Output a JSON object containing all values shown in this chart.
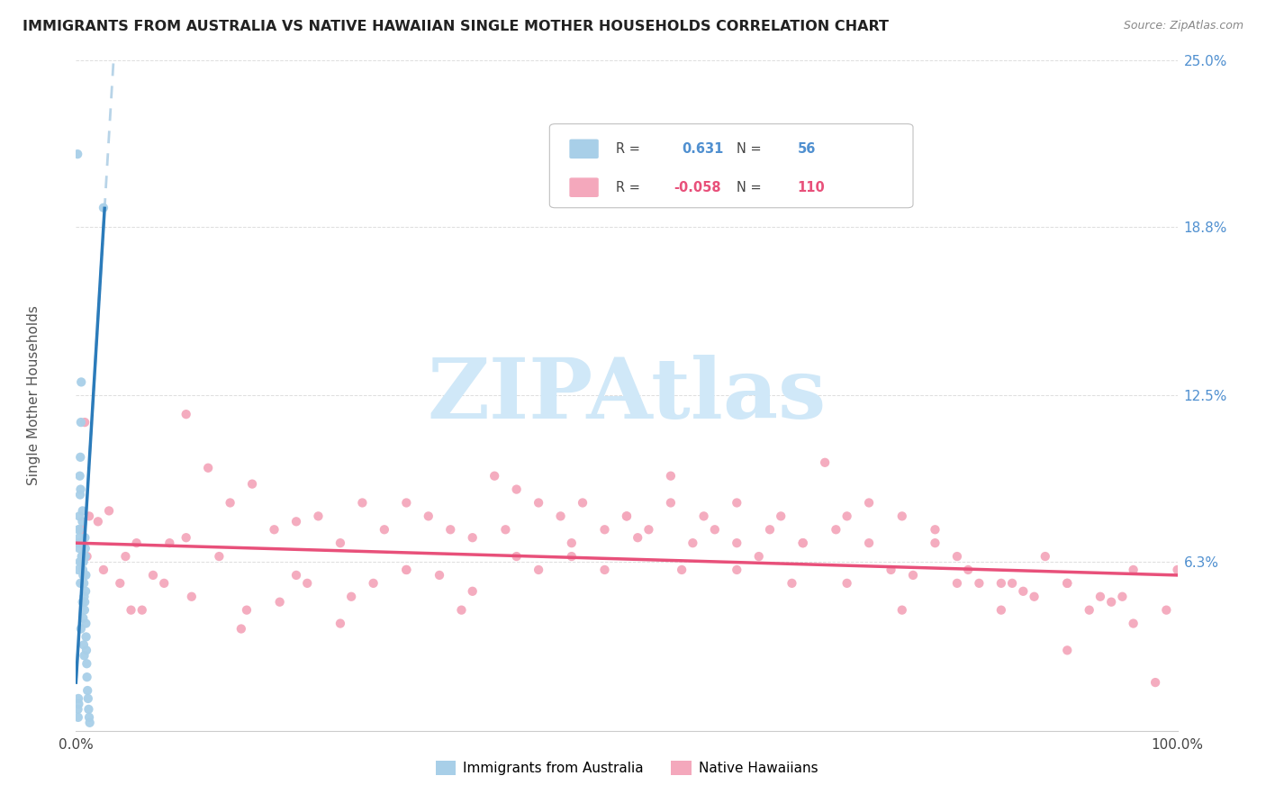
{
  "title": "IMMIGRANTS FROM AUSTRALIA VS NATIVE HAWAIIAN SINGLE MOTHER HOUSEHOLDS CORRELATION CHART",
  "source": "Source: ZipAtlas.com",
  "ylabel": "Single Mother Households",
  "xlim": [
    0,
    100
  ],
  "ylim": [
    0,
    25
  ],
  "ytick_vals": [
    6.3,
    12.5,
    18.8,
    25.0
  ],
  "ytick_labels": [
    "6.3%",
    "12.5%",
    "18.8%",
    "25.0%"
  ],
  "blue_R": 0.631,
  "blue_N": 56,
  "pink_R": -0.058,
  "pink_N": 110,
  "blue_color": "#a8cfe8",
  "pink_color": "#f4a8bc",
  "blue_line_color": "#2b7bba",
  "pink_line_color": "#e8507a",
  "dash_line_color": "#b8d4e8",
  "ytick_color": "#5090d0",
  "watermark_text": "ZIPAtlas",
  "watermark_color": "#d0e8f8",
  "legend_blue_text_R": "0.631",
  "legend_blue_text_N": "56",
  "legend_pink_text_R": "-0.058",
  "legend_pink_text_N": "110",
  "blue_scatter_x": [
    0.15,
    0.18,
    0.2,
    0.22,
    0.25,
    0.28,
    0.3,
    0.32,
    0.35,
    0.38,
    0.4,
    0.42,
    0.45,
    0.48,
    0.5,
    0.52,
    0.55,
    0.58,
    0.6,
    0.62,
    0.65,
    0.68,
    0.7,
    0.72,
    0.75,
    0.78,
    0.8,
    0.82,
    0.85,
    0.88,
    0.9,
    0.92,
    0.95,
    0.98,
    1.0,
    1.05,
    1.1,
    1.15,
    1.2,
    1.25,
    0.2,
    0.25,
    0.3,
    0.35,
    0.4,
    0.45,
    0.5,
    0.55,
    0.6,
    0.65,
    0.7,
    0.75,
    2.5,
    0.85,
    0.9,
    0.3
  ],
  "blue_scatter_y": [
    21.5,
    0.8,
    0.5,
    1.2,
    1.0,
    7.5,
    6.8,
    7.2,
    9.5,
    8.8,
    10.2,
    9.0,
    11.5,
    13.0,
    7.0,
    6.5,
    6.3,
    7.8,
    8.2,
    6.0,
    5.8,
    6.3,
    6.5,
    5.5,
    5.0,
    4.5,
    4.8,
    7.2,
    6.8,
    5.2,
    4.0,
    3.5,
    3.0,
    2.5,
    2.0,
    1.5,
    1.2,
    0.8,
    0.5,
    0.3,
    6.0,
    7.5,
    8.0,
    6.3,
    5.5,
    3.8,
    6.3,
    6.5,
    4.8,
    4.2,
    3.2,
    2.8,
    19.5,
    6.5,
    5.8,
    7.0
  ],
  "pink_scatter_x": [
    0.5,
    0.8,
    1.2,
    2.0,
    3.0,
    4.5,
    5.5,
    7.0,
    8.5,
    10.0,
    12.0,
    14.0,
    16.0,
    18.0,
    20.0,
    22.0,
    24.0,
    26.0,
    28.0,
    30.0,
    32.0,
    34.0,
    36.0,
    38.0,
    40.0,
    42.0,
    44.0,
    46.0,
    48.0,
    50.0,
    52.0,
    54.0,
    56.0,
    58.0,
    60.0,
    62.0,
    64.0,
    66.0,
    68.0,
    70.0,
    72.0,
    74.0,
    76.0,
    78.0,
    80.0,
    82.0,
    84.0,
    86.0,
    88.0,
    90.0,
    92.0,
    94.0,
    96.0,
    98.0,
    1.0,
    2.5,
    4.0,
    6.0,
    8.0,
    10.5,
    13.0,
    15.5,
    18.5,
    21.0,
    24.0,
    27.0,
    30.0,
    33.0,
    36.0,
    39.0,
    42.0,
    45.0,
    48.0,
    51.0,
    54.0,
    57.0,
    60.0,
    63.0,
    66.0,
    69.0,
    72.0,
    75.0,
    78.0,
    81.0,
    84.0,
    87.0,
    90.0,
    93.0,
    96.0,
    99.0,
    5.0,
    15.0,
    25.0,
    35.0,
    45.0,
    55.0,
    65.0,
    75.0,
    85.0,
    95.0,
    10.0,
    20.0,
    40.0,
    60.0,
    80.0,
    100.0,
    30.0,
    50.0,
    70.0,
    90.0
  ],
  "pink_scatter_y": [
    7.5,
    11.5,
    8.0,
    7.8,
    8.2,
    6.5,
    7.0,
    5.8,
    7.0,
    7.2,
    9.8,
    8.5,
    9.2,
    7.5,
    7.8,
    8.0,
    7.0,
    8.5,
    7.5,
    6.0,
    8.0,
    7.5,
    7.2,
    9.5,
    9.0,
    8.5,
    8.0,
    8.5,
    6.0,
    8.0,
    7.5,
    9.5,
    7.0,
    7.5,
    8.5,
    6.5,
    8.0,
    7.0,
    10.0,
    8.0,
    7.0,
    6.0,
    5.8,
    7.5,
    6.5,
    5.5,
    4.5,
    5.2,
    6.5,
    5.5,
    4.5,
    4.8,
    4.0,
    1.8,
    6.5,
    6.0,
    5.5,
    4.5,
    5.5,
    5.0,
    6.5,
    4.5,
    4.8,
    5.5,
    4.0,
    5.5,
    6.0,
    5.8,
    5.2,
    7.5,
    6.0,
    7.0,
    7.5,
    7.2,
    8.5,
    8.0,
    7.0,
    7.5,
    7.0,
    7.5,
    8.5,
    8.0,
    7.0,
    6.0,
    5.5,
    5.0,
    5.5,
    5.0,
    6.0,
    4.5,
    4.5,
    3.8,
    5.0,
    4.5,
    6.5,
    6.0,
    5.5,
    4.5,
    5.5,
    5.0,
    11.8,
    5.8,
    6.5,
    6.0,
    5.5,
    6.0,
    8.5,
    8.0,
    5.5,
    3.0
  ],
  "blue_trend_x": [
    0.0,
    2.6
  ],
  "blue_trend_y_intercept": 1.8,
  "blue_trend_slope": 6.8,
  "pink_trend_x": [
    0.0,
    100.0
  ],
  "pink_trend_y_start": 7.0,
  "pink_trend_y_end": 5.8
}
